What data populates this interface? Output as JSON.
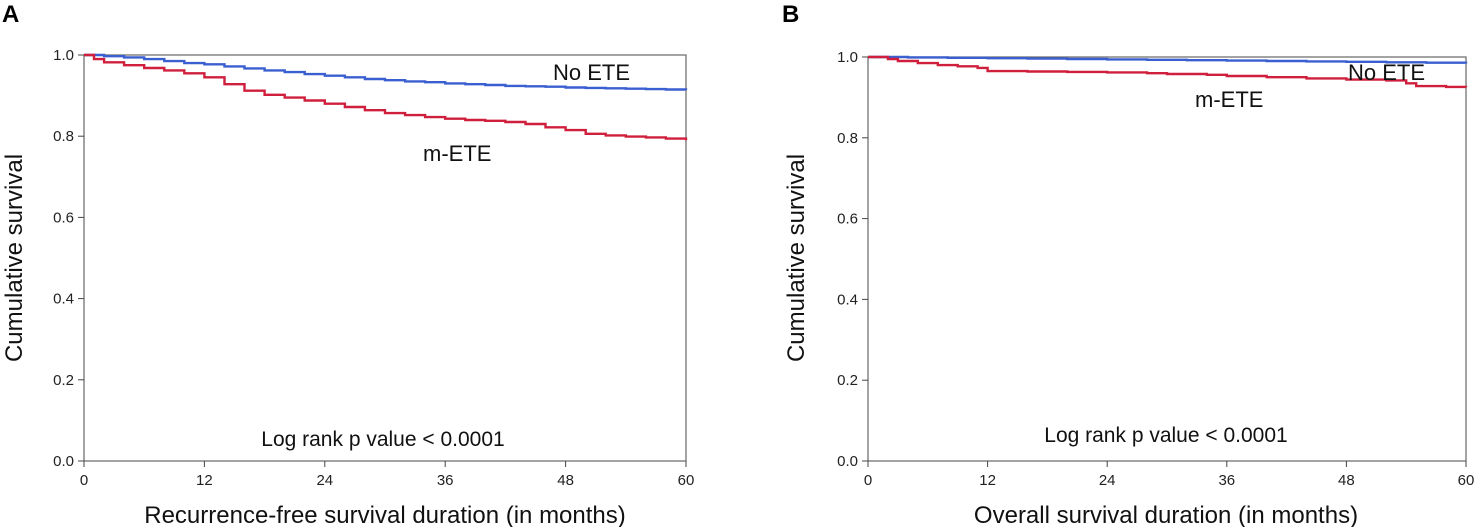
{
  "chart_data": [
    {
      "type": "line",
      "panel": "A",
      "xlabel": "Recurrence-free survival duration (in months)",
      "ylabel": "Cumulative survival",
      "xlim": [
        0,
        60
      ],
      "ylim": [
        0.0,
        1.0
      ],
      "xticks": [
        "0",
        "12",
        "24",
        "36",
        "48",
        "60"
      ],
      "yticks": [
        "0.0",
        "0.2",
        "0.4",
        "0.6",
        "0.8",
        "1.0"
      ],
      "annotation": "Log rank p value < 0.0001",
      "series": [
        {
          "name": "No ETE",
          "color": "#3a5fd0",
          "x": [
            0,
            2,
            4,
            6,
            8,
            10,
            12,
            14,
            16,
            18,
            20,
            22,
            24,
            26,
            28,
            30,
            32,
            34,
            36,
            38,
            40,
            42,
            44,
            46,
            48,
            50,
            52,
            54,
            56,
            58,
            60
          ],
          "y": [
            1.0,
            0.997,
            0.994,
            0.99,
            0.985,
            0.98,
            0.977,
            0.972,
            0.967,
            0.962,
            0.958,
            0.953,
            0.949,
            0.945,
            0.941,
            0.938,
            0.935,
            0.933,
            0.93,
            0.928,
            0.926,
            0.924,
            0.923,
            0.922,
            0.92,
            0.919,
            0.918,
            0.917,
            0.916,
            0.915,
            0.914
          ]
        },
        {
          "name": "m-ETE",
          "color": "#d01f3c",
          "x": [
            0,
            1,
            2,
            4,
            6,
            8,
            10,
            12,
            14,
            16,
            18,
            20,
            22,
            24,
            26,
            28,
            30,
            32,
            34,
            36,
            38,
            40,
            42,
            44,
            46,
            48,
            50,
            52,
            54,
            56,
            58,
            60
          ],
          "y": [
            1.0,
            0.99,
            0.982,
            0.975,
            0.968,
            0.962,
            0.955,
            0.945,
            0.928,
            0.912,
            0.902,
            0.895,
            0.888,
            0.88,
            0.872,
            0.864,
            0.857,
            0.852,
            0.847,
            0.843,
            0.84,
            0.838,
            0.835,
            0.83,
            0.822,
            0.815,
            0.806,
            0.802,
            0.799,
            0.797,
            0.794,
            0.79
          ]
        }
      ],
      "labels": [
        {
          "text": "No ETE",
          "series": "No ETE"
        },
        {
          "text": "m-ETE",
          "series": "m-ETE"
        }
      ]
    },
    {
      "type": "line",
      "panel": "B",
      "xlabel": "Overall survival duration (in months)",
      "ylabel": "Cumulative survival",
      "xlim": [
        0,
        60
      ],
      "ylim": [
        0.0,
        1.0
      ],
      "xticks": [
        "0",
        "12",
        "24",
        "36",
        "48",
        "60"
      ],
      "yticks": [
        "0.0",
        "0.2",
        "0.4",
        "0.6",
        "0.8",
        "1.0"
      ],
      "annotation": "Log rank p value < 0.0001",
      "series": [
        {
          "name": "No ETE",
          "color": "#3a5fd0",
          "x": [
            0,
            4,
            8,
            12,
            16,
            20,
            24,
            28,
            32,
            36,
            40,
            44,
            48,
            52,
            56,
            58,
            60
          ],
          "y": [
            1.0,
            0.999,
            0.998,
            0.997,
            0.996,
            0.995,
            0.994,
            0.993,
            0.992,
            0.991,
            0.99,
            0.989,
            0.988,
            0.987,
            0.986,
            0.986,
            0.984
          ]
        },
        {
          "name": "m-ETE",
          "color": "#d01f3c",
          "x": [
            0,
            2,
            3,
            5,
            7,
            9,
            11,
            12,
            16,
            20,
            24,
            28,
            30,
            34,
            36,
            40,
            44,
            48,
            52,
            54,
            55,
            58,
            60
          ],
          "y": [
            1.0,
            0.995,
            0.99,
            0.985,
            0.98,
            0.977,
            0.973,
            0.965,
            0.964,
            0.963,
            0.962,
            0.96,
            0.958,
            0.956,
            0.953,
            0.95,
            0.947,
            0.944,
            0.942,
            0.935,
            0.928,
            0.926,
            0.925
          ]
        }
      ],
      "labels": [
        {
          "text": "No ETE",
          "series": "No ETE"
        },
        {
          "text": "m-ETE",
          "series": "m-ETE"
        }
      ]
    }
  ]
}
